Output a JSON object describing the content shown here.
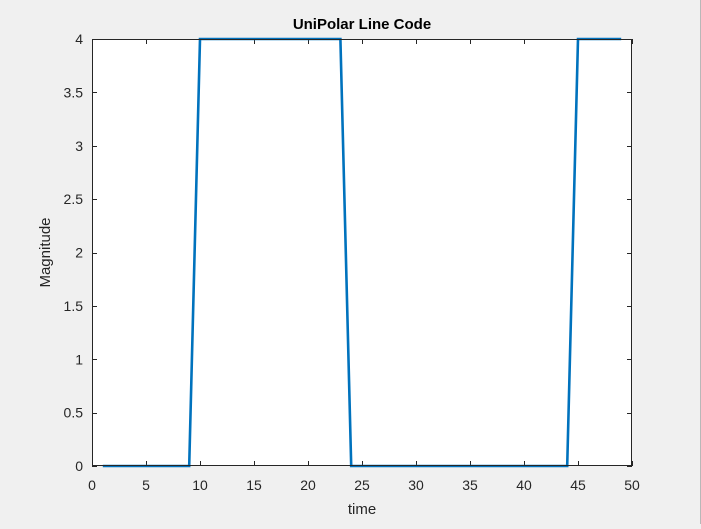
{
  "chart_data": {
    "type": "line",
    "title": "UniPolar Line Code",
    "xlabel": "time",
    "ylabel": "Magnitude",
    "xlim": [
      0,
      50
    ],
    "ylim": [
      0,
      4
    ],
    "xticks": [
      "0",
      "5",
      "10",
      "15",
      "20",
      "25",
      "30",
      "35",
      "40",
      "45",
      "50"
    ],
    "yticks": [
      "0",
      "0.5",
      "1",
      "1.5",
      "2",
      "2.5",
      "3",
      "3.5",
      "4"
    ],
    "grid": false,
    "line_color": "#0072bd",
    "series": [
      {
        "x": [
          1,
          2,
          3,
          4,
          5,
          6,
          7,
          8,
          9,
          10,
          11,
          12,
          13,
          14,
          15,
          16,
          17,
          18,
          19,
          20,
          21,
          22,
          23,
          24,
          25,
          26,
          27,
          28,
          29,
          30,
          31,
          32,
          33,
          34,
          35,
          36,
          37,
          38,
          39,
          40,
          41,
          42,
          43,
          44,
          45,
          46,
          47,
          48,
          49
        ],
        "y": [
          0,
          0,
          0,
          0,
          0,
          0,
          0,
          0,
          0,
          4,
          4,
          4,
          4,
          4,
          4,
          4,
          4,
          4,
          4,
          4,
          4,
          4,
          4,
          0,
          0,
          0,
          0,
          0,
          0,
          0,
          0,
          0,
          0,
          0,
          0,
          0,
          0,
          0,
          0,
          0,
          0,
          0,
          0,
          0,
          4,
          4,
          4,
          4,
          4
        ]
      }
    ]
  }
}
